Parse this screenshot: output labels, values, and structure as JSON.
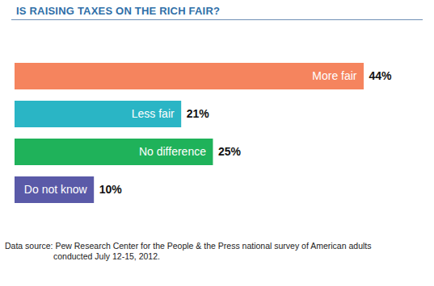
{
  "chart_data": {
    "type": "bar",
    "orientation": "horizontal",
    "title": "IS RAISING TAXES ON THE RICH FAIR?",
    "categories": [
      "More fair",
      "Less fair",
      "No difference",
      "Do not know"
    ],
    "values": [
      44,
      21,
      25,
      10
    ],
    "value_labels": [
      "44%",
      "21%",
      "25%",
      "10%"
    ],
    "colors": [
      "#f5845e",
      "#2ab5c5",
      "#1fb25a",
      "#5a5aa8"
    ],
    "xlim": [
      0,
      44
    ],
    "data_labels": true,
    "tick_labels": false,
    "grid": false,
    "source": "Data source: Pew Research Center for the People & the Press national survey of American adults conducted July 12-15, 2012."
  }
}
